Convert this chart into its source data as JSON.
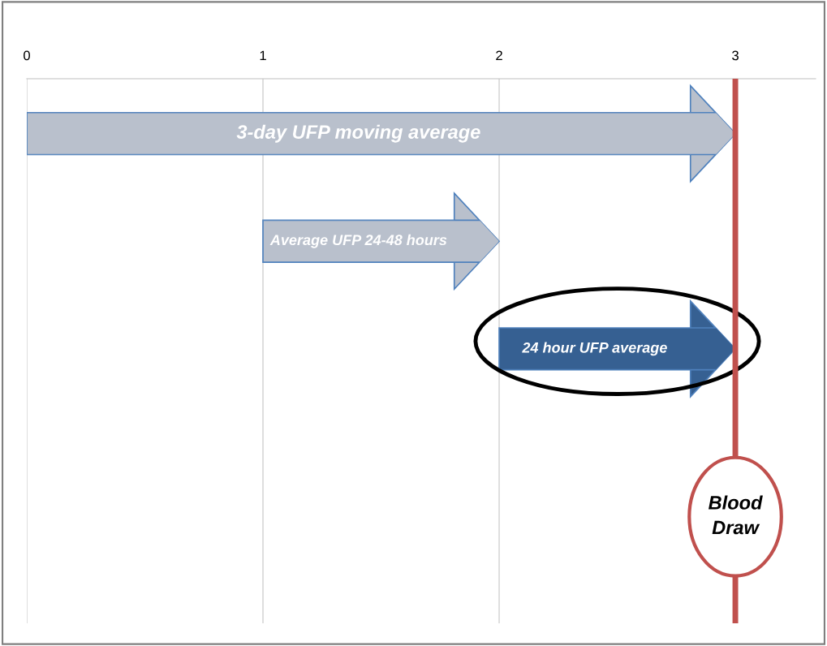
{
  "chart_data": {
    "type": "bar",
    "orientation": "horizontal",
    "categories": [
      "3-day UFP moving average",
      "Average UFP 24-48 hours",
      "24 hour UFP average"
    ],
    "base": [
      0,
      1,
      2
    ],
    "values": [
      3,
      1,
      1
    ],
    "colors": [
      "#b9c0cc",
      "#b9c0cc",
      "#366092"
    ],
    "xlim": [
      0,
      3.34
    ],
    "xticks": [
      0,
      1,
      2,
      3
    ],
    "grid": "x",
    "ref_lines": [
      {
        "axis": "x",
        "value": 3,
        "label": "Blood Draw",
        "color": "#c0504d"
      }
    ]
  }
}
